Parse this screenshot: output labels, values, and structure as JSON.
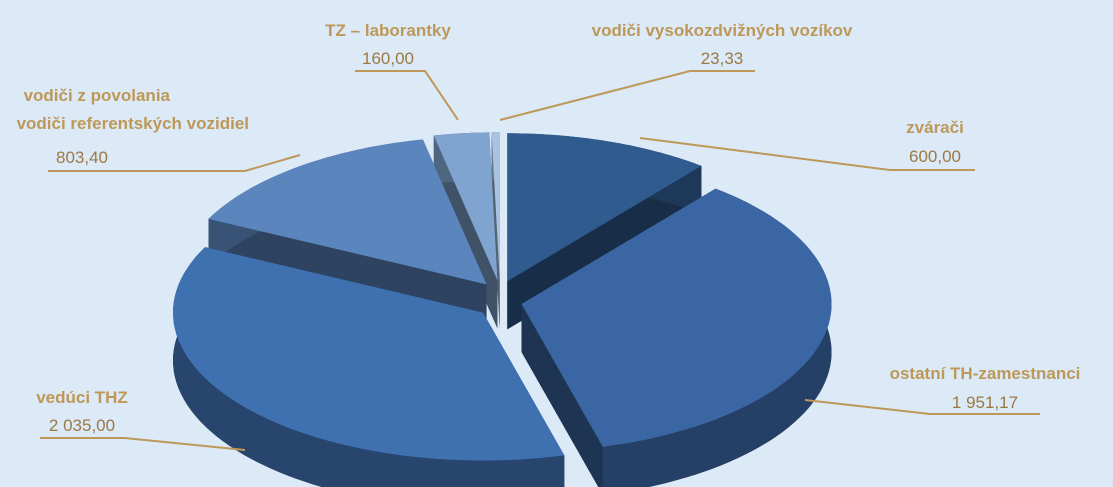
{
  "chart_data": {
    "type": "pie3d",
    "categories": [
      "zvárači",
      "ostatní TH-zamestnanci",
      "vedúci THZ",
      "vodiči z povolania\nvodiči referentských vozidiel",
      "TZ – laborantky",
      "vodiči vysokozdvižných vozíkov"
    ],
    "values": [
      600,
      1951.17,
      2035,
      803.4,
      160,
      23.33
    ],
    "value_labels": [
      "600,00",
      "1 951,17",
      "2 035,00",
      "803,40",
      "160,00",
      "23,33"
    ],
    "colors": [
      "#2f5b8f",
      "#3a67a4",
      "#3f70b0",
      "#5b86bd",
      "#7fa4d0",
      "#a9c3e2"
    ]
  }
}
